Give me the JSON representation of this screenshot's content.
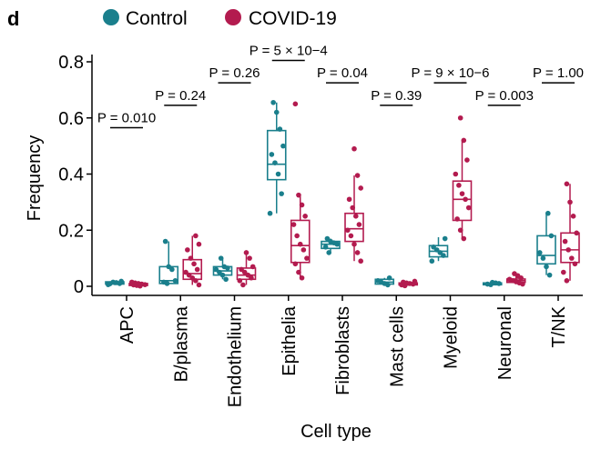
{
  "panel_label": "d",
  "colors": {
    "control": "#1a7f8c",
    "covid": "#b31b4f"
  },
  "chart_data": {
    "type": "box",
    "xlabel": "Cell type",
    "ylabel": "Frequency",
    "ylim": [
      0,
      0.8
    ],
    "yticks": [
      0,
      0.2,
      0.4,
      0.6,
      0.8
    ],
    "ytick_labels": [
      "0",
      "0.2",
      "0.4",
      "0.6",
      "0.8"
    ],
    "legend_position": "top",
    "categories": [
      "APC",
      "B/plasma",
      "Endothelium",
      "Epithelia",
      "Fibroblasts",
      "Mast cells",
      "Myeloid",
      "Neuronal",
      "T/NK"
    ],
    "p_values": [
      {
        "category": "APC",
        "text": "P = 0.010",
        "y": 0.565
      },
      {
        "category": "B/plasma",
        "text": "P = 0.24",
        "y": 0.645
      },
      {
        "category": "Endothelium",
        "text": "P = 0.26",
        "y": 0.725
      },
      {
        "category": "Epithelia",
        "text": "P = 5 × 10−4",
        "y": 0.805
      },
      {
        "category": "Fibroblasts",
        "text": "P = 0.04",
        "y": 0.725
      },
      {
        "category": "Mast cells",
        "text": "P = 0.39",
        "y": 0.645
      },
      {
        "category": "Myeloid",
        "text": "P = 9 × 10−6",
        "y": 0.725
      },
      {
        "category": "Neuronal",
        "text": "P = 0.003",
        "y": 0.645
      },
      {
        "category": "T/NK",
        "text": "P = 1.00",
        "y": 0.725
      }
    ],
    "series": [
      {
        "name": "Control",
        "boxes": [
          {
            "q1": 0.008,
            "median": 0.012,
            "q3": 0.016,
            "whisker_low": 0.004,
            "whisker_high": 0.02
          },
          {
            "q1": 0.01,
            "median": 0.02,
            "q3": 0.07,
            "whisker_low": 0.005,
            "whisker_high": 0.16
          },
          {
            "q1": 0.04,
            "median": 0.055,
            "q3": 0.07,
            "whisker_low": 0.025,
            "whisker_high": 0.1
          },
          {
            "q1": 0.38,
            "median": 0.435,
            "q3": 0.555,
            "whisker_low": 0.26,
            "whisker_high": 0.655
          },
          {
            "q1": 0.135,
            "median": 0.15,
            "q3": 0.16,
            "whisker_low": 0.12,
            "whisker_high": 0.17
          },
          {
            "q1": 0.008,
            "median": 0.015,
            "q3": 0.025,
            "whisker_low": 0.004,
            "whisker_high": 0.03
          },
          {
            "q1": 0.105,
            "median": 0.125,
            "q3": 0.145,
            "whisker_low": 0.09,
            "whisker_high": 0.175
          },
          {
            "q1": 0.008,
            "median": 0.01,
            "q3": 0.012,
            "whisker_low": 0.006,
            "whisker_high": 0.014
          },
          {
            "q1": 0.08,
            "median": 0.11,
            "q3": 0.18,
            "whisker_low": 0.04,
            "whisker_high": 0.26
          }
        ],
        "points": [
          [
            0.006,
            0.01,
            0.013,
            0.015,
            0.009,
            0.018
          ],
          [
            0.01,
            0.015,
            0.02,
            0.06,
            0.07,
            0.16
          ],
          [
            0.025,
            0.04,
            0.05,
            0.06,
            0.065,
            0.07,
            0.1
          ],
          [
            0.26,
            0.33,
            0.4,
            0.44,
            0.47,
            0.5,
            0.56,
            0.62,
            0.655
          ],
          [
            0.12,
            0.14,
            0.15,
            0.155,
            0.16,
            0.17
          ],
          [
            0.005,
            0.01,
            0.015,
            0.02,
            0.03
          ],
          [
            0.09,
            0.11,
            0.12,
            0.13,
            0.14,
            0.17
          ],
          [
            0.006,
            0.008,
            0.01,
            0.012,
            0.014
          ],
          [
            0.04,
            0.07,
            0.1,
            0.12,
            0.18,
            0.26
          ]
        ]
      },
      {
        "name": "COVID-19",
        "boxes": [
          {
            "q1": 0.003,
            "median": 0.006,
            "q3": 0.01,
            "whisker_low": 0.001,
            "whisker_high": 0.016
          },
          {
            "q1": 0.025,
            "median": 0.045,
            "q3": 0.095,
            "whisker_low": 0.005,
            "whisker_high": 0.18
          },
          {
            "q1": 0.025,
            "median": 0.04,
            "q3": 0.065,
            "whisker_low": 0.005,
            "whisker_high": 0.12
          },
          {
            "q1": 0.085,
            "median": 0.145,
            "q3": 0.235,
            "whisker_low": 0.03,
            "whisker_high": 0.325
          },
          {
            "q1": 0.16,
            "median": 0.205,
            "q3": 0.26,
            "whisker_low": 0.09,
            "whisker_high": 0.395
          },
          {
            "q1": 0.005,
            "median": 0.008,
            "q3": 0.012,
            "whisker_low": 0.002,
            "whisker_high": 0.018
          },
          {
            "q1": 0.235,
            "median": 0.31,
            "q3": 0.375,
            "whisker_low": 0.17,
            "whisker_high": 0.52
          },
          {
            "q1": 0.014,
            "median": 0.02,
            "q3": 0.026,
            "whisker_low": 0.008,
            "whisker_high": 0.045
          },
          {
            "q1": 0.085,
            "median": 0.13,
            "q3": 0.19,
            "whisker_low": 0.02,
            "whisker_high": 0.365
          }
        ],
        "points": [
          [
            0.001,
            0.003,
            0.005,
            0.006,
            0.008,
            0.01,
            0.012,
            0.015
          ],
          [
            0.005,
            0.02,
            0.03,
            0.04,
            0.05,
            0.06,
            0.08,
            0.1,
            0.13,
            0.15,
            0.18
          ],
          [
            0.005,
            0.02,
            0.03,
            0.04,
            0.05,
            0.06,
            0.07,
            0.1,
            0.12
          ],
          [
            0.03,
            0.05,
            0.08,
            0.1,
            0.13,
            0.15,
            0.18,
            0.22,
            0.25,
            0.29,
            0.325,
            0.65
          ],
          [
            0.09,
            0.12,
            0.15,
            0.18,
            0.2,
            0.22,
            0.25,
            0.28,
            0.31,
            0.35,
            0.395,
            0.49
          ],
          [
            0.002,
            0.005,
            0.008,
            0.01,
            0.012,
            0.015,
            0.018
          ],
          [
            0.17,
            0.2,
            0.24,
            0.28,
            0.31,
            0.33,
            0.36,
            0.4,
            0.45,
            0.52,
            0.6
          ],
          [
            0.008,
            0.012,
            0.016,
            0.02,
            0.025,
            0.03,
            0.038,
            0.045
          ],
          [
            0.02,
            0.05,
            0.08,
            0.1,
            0.13,
            0.16,
            0.19,
            0.25,
            0.3,
            0.365
          ]
        ]
      }
    ]
  }
}
